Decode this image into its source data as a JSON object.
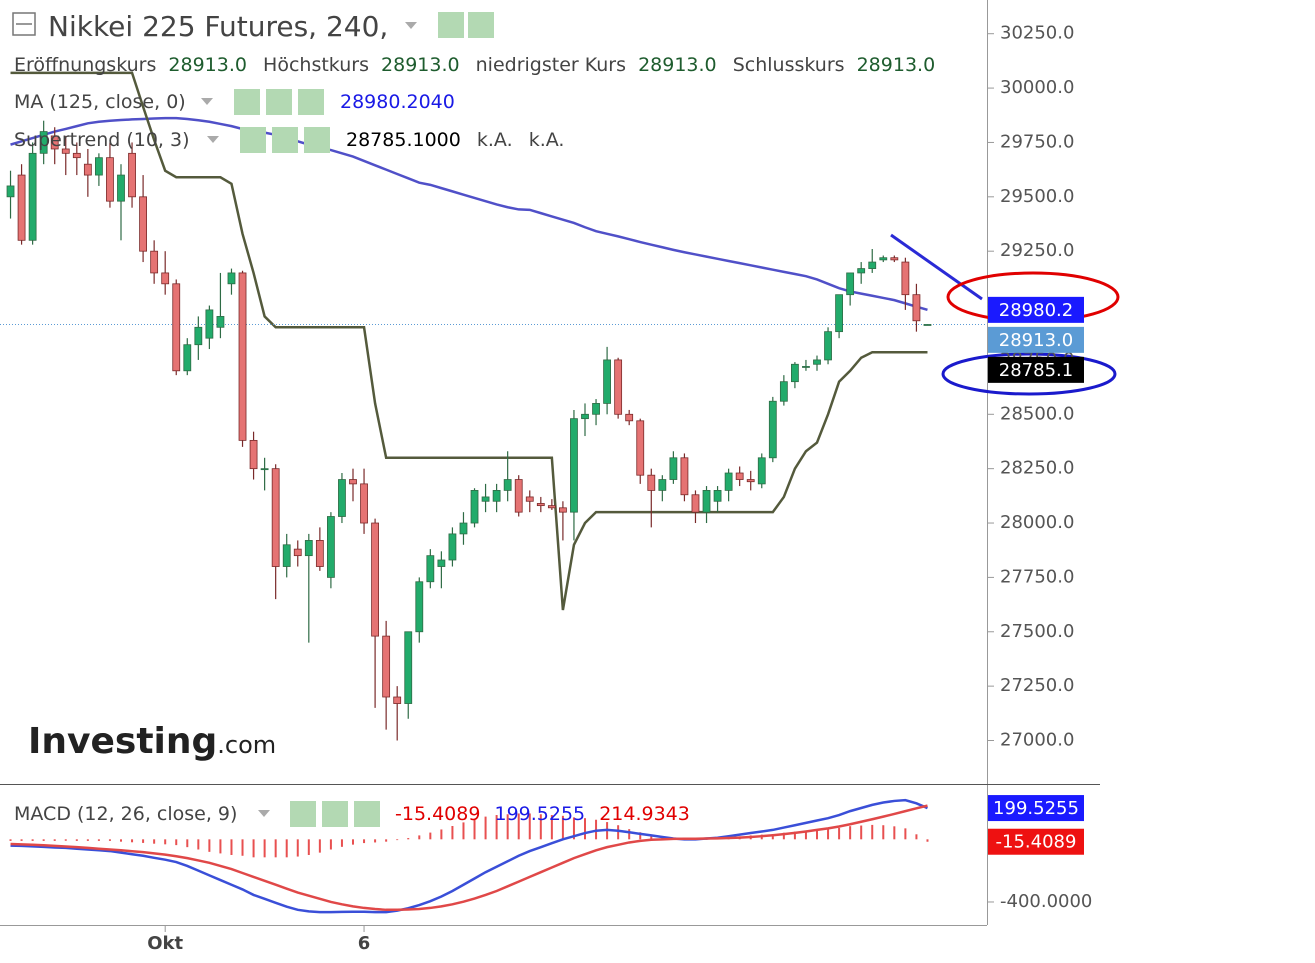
{
  "chart_data": [
    {
      "type": "candlestick",
      "title": "Nikkei 225 Futures, 240,",
      "ohlc_labels": [
        "Eröffnungskurs",
        "Höchstkurs",
        "niedrigster Kurs",
        "Schlusskurs"
      ],
      "ohlc_values": [
        "28913.0",
        "28913.0",
        "28913.0",
        "28913.0"
      ],
      "watermark": [
        "Investing",
        ".com"
      ],
      "categories": [
        null,
        null,
        null,
        null,
        null,
        null,
        null,
        null,
        null,
        null,
        null,
        null,
        null,
        null,
        "Okt",
        null,
        null,
        null,
        null,
        null,
        null,
        null,
        null,
        null,
        null,
        null,
        null,
        null,
        null,
        null,
        null,
        null,
        "6",
        null,
        null,
        null,
        null,
        null,
        null,
        null,
        null,
        null,
        null,
        null,
        null,
        null,
        null,
        null,
        null,
        null,
        null,
        null,
        null,
        null,
        null,
        null,
        null,
        null,
        null,
        null,
        null,
        null,
        null,
        null,
        null,
        null,
        null,
        null,
        null,
        null,
        null,
        null,
        null,
        null,
        null,
        null,
        null,
        null,
        null,
        null,
        null,
        null,
        null,
        null
      ],
      "open": [
        29500,
        29600,
        29300,
        29700,
        29780,
        29720,
        29700,
        29650,
        29600,
        29680,
        29480,
        29700,
        29500,
        29250,
        29150,
        29100,
        28700,
        28820,
        28850,
        28900,
        29100,
        29150,
        28380,
        28250,
        28250,
        27800,
        27880,
        27850,
        27920,
        27750,
        28030,
        28200,
        28180,
        28000,
        27480,
        27200,
        27170,
        27500,
        27730,
        27800,
        27830,
        27950,
        28000,
        28100,
        28100,
        28150,
        28200,
        28120,
        28090,
        28080,
        28070,
        28050,
        28480,
        28500,
        28550,
        28750,
        28500,
        28470,
        28220,
        28150,
        28200,
        28300,
        28130,
        28050,
        28100,
        28150,
        28230,
        28200,
        28180,
        28300,
        28560,
        28650,
        28720,
        28730,
        28750,
        28880,
        29050,
        29150,
        29170,
        29210,
        29220,
        29200,
        29050,
        28913
      ],
      "high": [
        29620,
        29650,
        29750,
        29850,
        29820,
        29780,
        29750,
        29720,
        29700,
        29750,
        29650,
        29750,
        29600,
        29300,
        29250,
        29120,
        28850,
        28950,
        29000,
        29150,
        29170,
        29160,
        28420,
        28300,
        28270,
        27950,
        27920,
        27950,
        27980,
        28050,
        28230,
        28250,
        28250,
        28020,
        27550,
        27250,
        27500,
        27750,
        27880,
        27870,
        27980,
        28050,
        28160,
        28180,
        28180,
        28330,
        28220,
        28150,
        28120,
        28110,
        28100,
        28520,
        28550,
        28570,
        28810,
        28760,
        28520,
        28480,
        28250,
        28220,
        28330,
        28320,
        28150,
        28170,
        28170,
        28250,
        28260,
        28240,
        28320,
        28580,
        28680,
        28740,
        28750,
        28770,
        28900,
        29050,
        29150,
        29200,
        29260,
        29230,
        29230,
        29220,
        29100,
        28913
      ],
      "low": [
        29400,
        29280,
        29280,
        29650,
        29650,
        29600,
        29600,
        29500,
        29550,
        29450,
        29300,
        29450,
        29200,
        29100,
        29050,
        28680,
        28680,
        28750,
        28800,
        28850,
        29050,
        28350,
        28200,
        28150,
        27650,
        27750,
        27800,
        27450,
        27780,
        27700,
        28000,
        28100,
        27950,
        27150,
        27050,
        27000,
        27100,
        27450,
        27700,
        27700,
        27800,
        27900,
        27980,
        28050,
        28050,
        28100,
        28030,
        28050,
        28050,
        28060,
        27920,
        27920,
        28400,
        28450,
        28500,
        28480,
        28450,
        28180,
        27980,
        28100,
        28180,
        28100,
        28000,
        28000,
        28050,
        28100,
        28170,
        28150,
        28160,
        28280,
        28540,
        28620,
        28700,
        28700,
        28730,
        28850,
        29000,
        29100,
        29150,
        29200,
        29200,
        28980,
        28880,
        28913
      ],
      "close": [
        29550,
        29300,
        29700,
        29800,
        29720,
        29700,
        29680,
        29600,
        29680,
        29480,
        29600,
        29500,
        29250,
        29150,
        29100,
        28700,
        28820,
        28900,
        28980,
        28950,
        29150,
        28380,
        28250,
        28250,
        27800,
        27900,
        27850,
        27920,
        27800,
        28030,
        28200,
        28180,
        28000,
        27480,
        27200,
        27170,
        27500,
        27730,
        27850,
        27830,
        27950,
        28000,
        28150,
        28120,
        28150,
        28200,
        28050,
        28100,
        28080,
        28070,
        28050,
        28480,
        28500,
        28550,
        28750,
        28500,
        28470,
        28220,
        28150,
        28200,
        28300,
        28130,
        28050,
        28150,
        28150,
        28230,
        28200,
        28190,
        28300,
        28560,
        28650,
        28730,
        28720,
        28750,
        28880,
        29050,
        29150,
        29170,
        29200,
        29220,
        29210,
        29050,
        28930,
        28913
      ],
      "up_color": "#22ab6b",
      "down_color": "#e57373",
      "series": [
        {
          "name": "MA (125, close, 0)",
          "color": "#5050c8",
          "legend_values": [
            "28980.2040"
          ],
          "values": [
            29740,
            29755,
            29770,
            29785,
            29800,
            29812,
            29825,
            29838,
            29845,
            29850,
            29853,
            29856,
            29858,
            29860,
            29862,
            29862,
            29858,
            29852,
            29845,
            29835,
            29825,
            29812,
            29805,
            29795,
            29785,
            29770,
            29755,
            29740,
            29725,
            29715,
            29700,
            29685,
            29665,
            29645,
            29625,
            29605,
            29585,
            29565,
            29555,
            29540,
            29525,
            29510,
            29495,
            29480,
            29465,
            29452,
            29442,
            29440,
            29425,
            29410,
            29395,
            29380,
            29360,
            29342,
            29330,
            29318,
            29305,
            29292,
            29280,
            29268,
            29256,
            29245,
            29235,
            29225,
            29215,
            29205,
            29195,
            29185,
            29175,
            29165,
            29155,
            29145,
            29135,
            29120,
            29100,
            29080,
            29065,
            29055,
            29045,
            29035,
            29025,
            29010,
            28995,
            28980.204
          ]
        },
        {
          "name": "Supertrend (10, 3)",
          "color": "#545a3c",
          "legend_values": [
            "28785.1000",
            "k.A.",
            "k.A."
          ],
          "values": [
            30070,
            30070,
            30070,
            30070,
            30070,
            30070,
            30070,
            30070,
            30070,
            30070,
            30070,
            30070,
            29914,
            29762,
            29620,
            29590,
            29590,
            29590,
            29590,
            29590,
            29560,
            29330,
            29150,
            28950,
            28900,
            28900,
            28900,
            28900,
            28900,
            28900,
            28900,
            28900,
            28900,
            28550,
            28300,
            28300,
            28300,
            28300,
            28300,
            28300,
            28300,
            28300,
            28300,
            28300,
            28300,
            28300,
            28300,
            28300,
            28300,
            28300,
            27600,
            27900,
            28000,
            28050,
            28050,
            28050,
            28050,
            28050,
            28050,
            28050,
            28050,
            28050,
            28050,
            28050,
            28050,
            28050,
            28050,
            28050,
            28050,
            28050,
            28120,
            28250,
            28330,
            28370,
            28500,
            28650,
            28700,
            28760,
            28785,
            28785.1,
            28785.1,
            28785.1,
            28785.1,
            28785.1
          ]
        }
      ],
      "ylim": [
        26800,
        30405
      ],
      "yticks": [
        {
          "value": 27000,
          "label": "27000.0"
        },
        {
          "value": 27250,
          "label": "27250.0"
        },
        {
          "value": 27500,
          "label": "27500.0"
        },
        {
          "value": 27750,
          "label": "27750.0"
        },
        {
          "value": 28000,
          "label": "28000.0"
        },
        {
          "value": 28250,
          "label": "28250.0"
        },
        {
          "value": 28500,
          "label": "28500.0"
        },
        {
          "value": 28750,
          "label": "28750.0"
        },
        {
          "value": 29000,
          "label": "29000.0"
        },
        {
          "value": 29250,
          "label": "29250.0"
        },
        {
          "value": 29500,
          "label": "29500.0"
        },
        {
          "value": 29750,
          "label": "29750.0"
        },
        {
          "value": 30000,
          "label": "30000.0"
        },
        {
          "value": 30250,
          "label": "30250.0"
        }
      ],
      "badges": [
        {
          "value": 28980.2,
          "color": "#1a1aff"
        },
        {
          "value": 28913,
          "label": "28913.0",
          "color": "#5b9bd5"
        },
        {
          "value": 28785.1,
          "color": "#000000"
        }
      ]
    },
    {
      "type": "macd",
      "name": "MACD (12, 26, close, 9)",
      "legend_values": [
        "-15.4089",
        "199.5255",
        "214.9343"
      ],
      "legend_colors": [
        "#e00000",
        "#1a1ae6",
        "#e00000"
      ],
      "ylim": [
        -547,
        334
      ],
      "yticks": [
        {
          "value": -400,
          "label": "-400.0000"
        }
      ],
      "histogram": {
        "color": "#e85050",
        "values": [
          -10,
          -10,
          -10,
          -10,
          -10,
          -9,
          -10,
          -10,
          -10,
          -10,
          -15,
          -19,
          -23,
          -28,
          -32,
          -37,
          -50,
          -65,
          -80,
          -90,
          -100,
          -105,
          -115,
          -115,
          -115,
          -115,
          -110,
          -100,
          -85,
          -65,
          -48,
          -34,
          -24,
          -20,
          -15,
          -5,
          8,
          25,
          43,
          63,
          85,
          108,
          128,
          145,
          155,
          160,
          165,
          165,
          160,
          155,
          150,
          140,
          135,
          125,
          110,
          90,
          65,
          45,
          28,
          15,
          2,
          -4,
          -4,
          0,
          4,
          12,
          19,
          25,
          30,
          34,
          42,
          49,
          55,
          60,
          65,
          73,
          84,
          88,
          92,
          90,
          83,
          70,
          32,
          -15.4089
        ]
      },
      "series": [
        {
          "color": "#3a4fd8",
          "values": [
            -40,
            -42,
            -45,
            -48,
            -52,
            -55,
            -60,
            -65,
            -70,
            -75,
            -85,
            -95,
            -105,
            -118,
            -130,
            -145,
            -170,
            -200,
            -230,
            -260,
            -290,
            -320,
            -355,
            -380,
            -405,
            -430,
            -450,
            -460,
            -465,
            -465,
            -463,
            -462,
            -462,
            -465,
            -465,
            -455,
            -440,
            -420,
            -395,
            -365,
            -330,
            -290,
            -250,
            -210,
            -175,
            -140,
            -105,
            -75,
            -50,
            -25,
            0,
            20,
            40,
            55,
            60,
            55,
            45,
            35,
            25,
            15,
            5,
            0,
            0,
            5,
            10,
            20,
            30,
            40,
            50,
            60,
            75,
            90,
            105,
            120,
            135,
            155,
            180,
            200,
            220,
            235,
            245,
            250,
            230,
            199.5255
          ]
        },
        {
          "color": "#e04848",
          "values": [
            -30,
            -32,
            -35,
            -38,
            -42,
            -46,
            -50,
            -55,
            -60,
            -65,
            -70,
            -76,
            -82,
            -90,
            -98,
            -108,
            -120,
            -135,
            -150,
            -170,
            -190,
            -215,
            -240,
            -265,
            -290,
            -315,
            -340,
            -360,
            -380,
            -400,
            -415,
            -428,
            -438,
            -445,
            -450,
            -450,
            -448,
            -445,
            -438,
            -428,
            -415,
            -398,
            -378,
            -355,
            -330,
            -300,
            -270,
            -240,
            -210,
            -180,
            -150,
            -120,
            -95,
            -70,
            -50,
            -35,
            -20,
            -10,
            -3,
            0,
            3,
            4,
            4,
            5,
            6,
            8,
            11,
            15,
            20,
            26,
            33,
            41,
            50,
            60,
            70,
            82,
            96,
            112,
            128,
            145,
            162,
            180,
            198,
            214.9343
          ]
        }
      ],
      "badges": [
        {
          "value": 199.5255,
          "color": "#1a1aff"
        },
        {
          "value": -15.4089,
          "color": "#ee1111"
        }
      ]
    }
  ]
}
